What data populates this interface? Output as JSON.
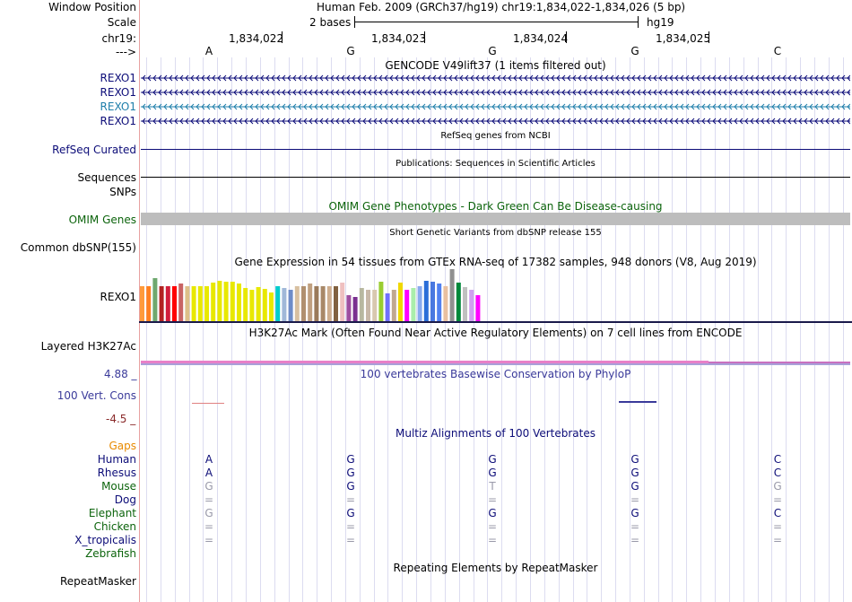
{
  "header": {
    "window_position_label": "Window Position",
    "assembly_info": "Human Feb. 2009 (GRCh37/hg19)   chr19:1,834,022-1,834,026 (5 bp)",
    "scale_label": "Scale",
    "scale_text": "2 bases",
    "scale_db": "hg19",
    "chrom_label": "chr19:",
    "strand_label": "--->",
    "positions": [
      "1,834,022",
      "1,834,023",
      "1,834,024",
      "1,834,025"
    ],
    "bases": [
      "A",
      "G",
      "G",
      "G",
      "C"
    ]
  },
  "gencode": {
    "title": "GENCODE V49lift37 (1 items filtered out)",
    "labels": [
      "REXO1",
      "REXO1",
      "REXO1",
      "REXO1"
    ],
    "colors": [
      "#0c0c78",
      "#0c0c78",
      "#1e7eaa",
      "#0c0c78"
    ]
  },
  "refseq": {
    "title": "RefSeq genes from NCBI",
    "label": "RefSeq Curated"
  },
  "publications": {
    "title": "Publications: Sequences in Scientific Articles",
    "label1": "Sequences",
    "label2": "SNPs"
  },
  "omim": {
    "title": "OMIM Gene Phenotypes - Dark Green Can Be Disease-causing",
    "label": "OMIM Genes"
  },
  "dbsnp": {
    "title": "Short Genetic Variants from dbSNP release 155",
    "label": "Common dbSNP(155)"
  },
  "gtex": {
    "title": "Gene Expression in 54 tissues from GTEx RNA-seq of 17382 samples, 948 donors (V8, Aug 2019)",
    "label": "REXO1",
    "bars": [
      {
        "c": "#ff9a3a",
        "v": 0.68
      },
      {
        "c": "#ff7f1f",
        "v": 0.68
      },
      {
        "c": "#6fa86f",
        "v": 0.82
      },
      {
        "c": "#b22222",
        "v": 0.68
      },
      {
        "c": "#d21e3c",
        "v": 0.68
      },
      {
        "c": "#ff0000",
        "v": 0.68
      },
      {
        "c": "#c86464",
        "v": 0.72
      },
      {
        "c": "#ddc089",
        "v": 0.68
      },
      {
        "c": "#e8e800",
        "v": 0.68
      },
      {
        "c": "#e8e800",
        "v": 0.68
      },
      {
        "c": "#e8e800",
        "v": 0.68
      },
      {
        "c": "#e8e800",
        "v": 0.74
      },
      {
        "c": "#e8e800",
        "v": 0.78
      },
      {
        "c": "#e8e800",
        "v": 0.76
      },
      {
        "c": "#e8e800",
        "v": 0.76
      },
      {
        "c": "#e8e800",
        "v": 0.72
      },
      {
        "c": "#e8e800",
        "v": 0.64
      },
      {
        "c": "#e8e800",
        "v": 0.6
      },
      {
        "c": "#e8e800",
        "v": 0.66
      },
      {
        "c": "#e8e800",
        "v": 0.62
      },
      {
        "c": "#e8e800",
        "v": 0.56
      },
      {
        "c": "#00cccc",
        "v": 0.68
      },
      {
        "c": "#a0b8d8",
        "v": 0.64
      },
      {
        "c": "#6e8cc8",
        "v": 0.6
      },
      {
        "c": "#d8c0a0",
        "v": 0.68
      },
      {
        "c": "#b09070",
        "v": 0.68
      },
      {
        "c": "#c0a080",
        "v": 0.72
      },
      {
        "c": "#9a7a5a",
        "v": 0.68
      },
      {
        "c": "#a88868",
        "v": 0.68
      },
      {
        "c": "#cfae8e",
        "v": 0.68
      },
      {
        "c": "#806040",
        "v": 0.68
      },
      {
        "c": "#efc0c0",
        "v": 0.74
      },
      {
        "c": "#9e4ea0",
        "v": 0.5
      },
      {
        "c": "#7a3090",
        "v": 0.46
      },
      {
        "c": "#b8b8a0",
        "v": 0.64
      },
      {
        "c": "#c8b8a8",
        "v": 0.6
      },
      {
        "c": "#d8c8b0",
        "v": 0.6
      },
      {
        "c": "#9acd32",
        "v": 0.76
      },
      {
        "c": "#7070ff",
        "v": 0.54
      },
      {
        "c": "#c0a890",
        "v": 0.6
      },
      {
        "c": "#f0d800",
        "v": 0.74
      },
      {
        "c": "#ff00ff",
        "v": 0.6
      },
      {
        "c": "#aaeeaa",
        "v": 0.64
      },
      {
        "c": "#88aaee",
        "v": 0.68
      },
      {
        "c": "#2a6ed8",
        "v": 0.78
      },
      {
        "c": "#4a78e0",
        "v": 0.76
      },
      {
        "c": "#5080f0",
        "v": 0.72
      },
      {
        "c": "#e8c0a0",
        "v": 0.68
      },
      {
        "c": "#909090",
        "v": 1.0
      },
      {
        "c": "#00883a",
        "v": 0.74
      },
      {
        "c": "#c0c0c0",
        "v": 0.66
      },
      {
        "c": "#d0a0f0",
        "v": 0.6
      },
      {
        "c": "#ff00ff",
        "v": 0.5
      }
    ]
  },
  "h3k27ac": {
    "title": "H3K27Ac Mark (Often Found Near Active Regulatory Elements) on 7 cell lines from ENCODE",
    "label": "Layered H3K27Ac"
  },
  "conservation": {
    "title": "100 vertebrates Basewise Conservation by PhyloP",
    "label": "100 Vert. Cons",
    "max_label": "4.88 _",
    "min_label": "-4.5 _"
  },
  "multiz": {
    "title": "Multiz Alignments of 100 Vertebrates",
    "species": [
      {
        "name": "Gaps",
        "color": "#e88a00",
        "bases": [
          "",
          "",
          "",
          "",
          ""
        ],
        "tone": "navy"
      },
      {
        "name": "Human",
        "color": "#0c0c78",
        "bases": [
          "A",
          "G",
          "G",
          "G",
          "C"
        ],
        "tones": [
          "navy",
          "navy",
          "navy",
          "navy",
          "navy"
        ]
      },
      {
        "name": "Rhesus",
        "color": "#0c0c78",
        "bases": [
          "A",
          "G",
          "G",
          "G",
          "C"
        ],
        "tones": [
          "navy",
          "navy",
          "navy",
          "navy",
          "navy"
        ]
      },
      {
        "name": "Mouse",
        "color": "#0c640c",
        "bases": [
          "G",
          "G",
          "T",
          "G",
          "G"
        ],
        "tones": [
          "gray",
          "navy",
          "gray",
          "navy",
          "gray"
        ]
      },
      {
        "name": "Dog",
        "color": "#0c0c78",
        "bases": [
          "=",
          "=",
          "=",
          "=",
          "="
        ],
        "tones": [
          "gray",
          "gray",
          "gray",
          "gray",
          "gray"
        ]
      },
      {
        "name": "Elephant",
        "color": "#0c640c",
        "bases": [
          "G",
          "G",
          "G",
          "G",
          "C"
        ],
        "tones": [
          "gray",
          "navy",
          "navy",
          "navy",
          "navy"
        ]
      },
      {
        "name": "Chicken",
        "color": "#0c640c",
        "bases": [
          "=",
          "=",
          "=",
          "=",
          "="
        ],
        "tones": [
          "gray",
          "gray",
          "gray",
          "gray",
          "gray"
        ]
      },
      {
        "name": "X_tropicalis",
        "color": "#0c0c78",
        "bases": [
          "=",
          "=",
          "=",
          "=",
          "="
        ],
        "tones": [
          "gray",
          "gray",
          "gray",
          "gray",
          "gray"
        ]
      },
      {
        "name": "Zebrafish",
        "color": "#0c640c",
        "bases": [
          "",
          "",
          "",
          "",
          ""
        ],
        "tones": [
          "gray",
          "gray",
          "gray",
          "gray",
          "gray"
        ]
      }
    ]
  },
  "repeatmasker": {
    "title": "Repeating Elements by RepeatMasker",
    "label": "RepeatMasker"
  }
}
